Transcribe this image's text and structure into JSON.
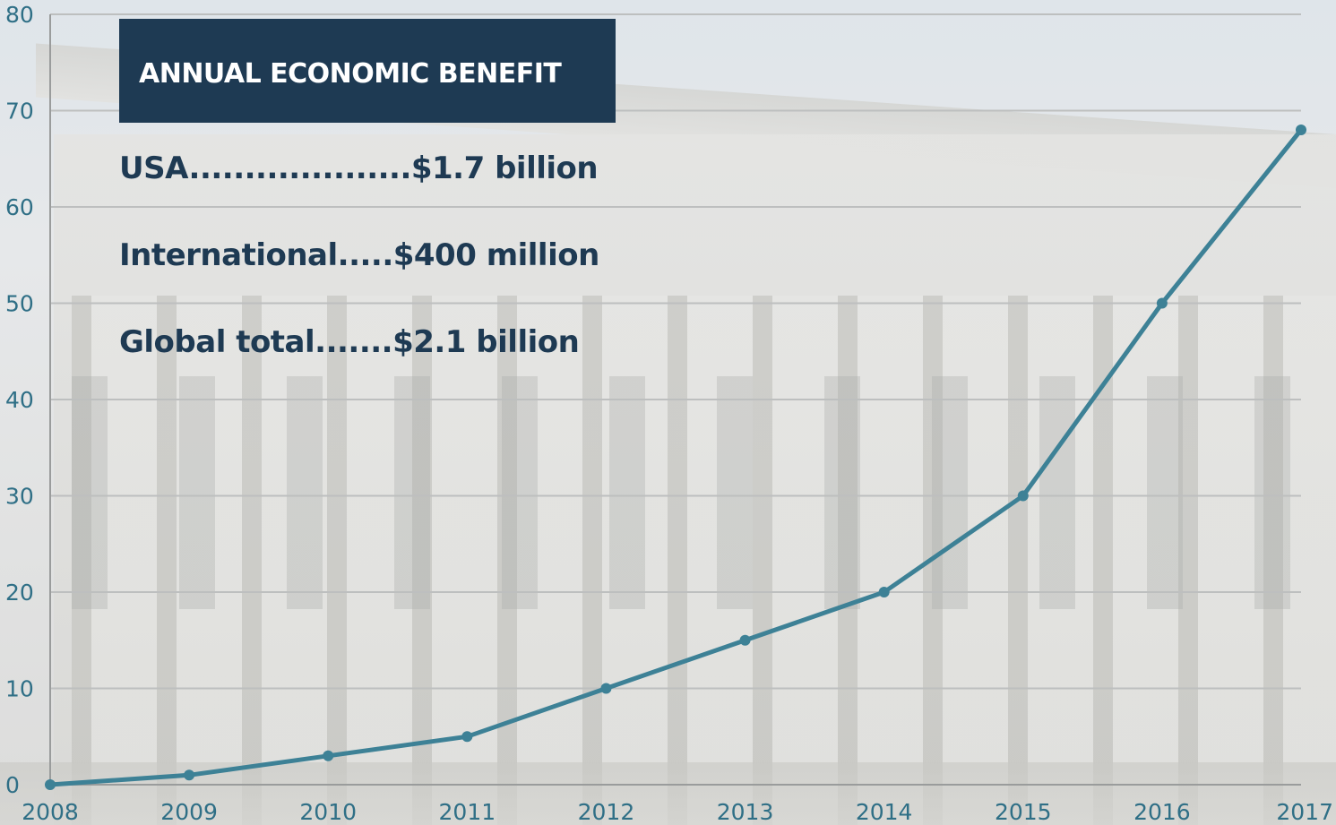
{
  "panel": {
    "title": "ANNUAL ECONOMIC BENEFIT",
    "lines": [
      "USA....................$1.7 billion",
      "International.....$400 million",
      "Global total.......$2.1 billion"
    ]
  },
  "colors": {
    "series": "#3d8196",
    "panel_bg": "#1e3a53",
    "tick_label": "#2f6f86"
  },
  "chart_data": {
    "type": "line",
    "title": "",
    "xlabel": "",
    "ylabel": "",
    "x": [
      2008,
      2009,
      2010,
      2011,
      2012,
      2013,
      2014,
      2015,
      2016,
      2017
    ],
    "series": [
      {
        "values": [
          0,
          1,
          3,
          5,
          10,
          15,
          20,
          30,
          50,
          68
        ]
      }
    ],
    "ylim": [
      0,
      80
    ],
    "yticks": [
      0,
      10,
      20,
      30,
      40,
      50,
      60,
      70,
      80
    ],
    "grid": true,
    "legend": "none"
  }
}
